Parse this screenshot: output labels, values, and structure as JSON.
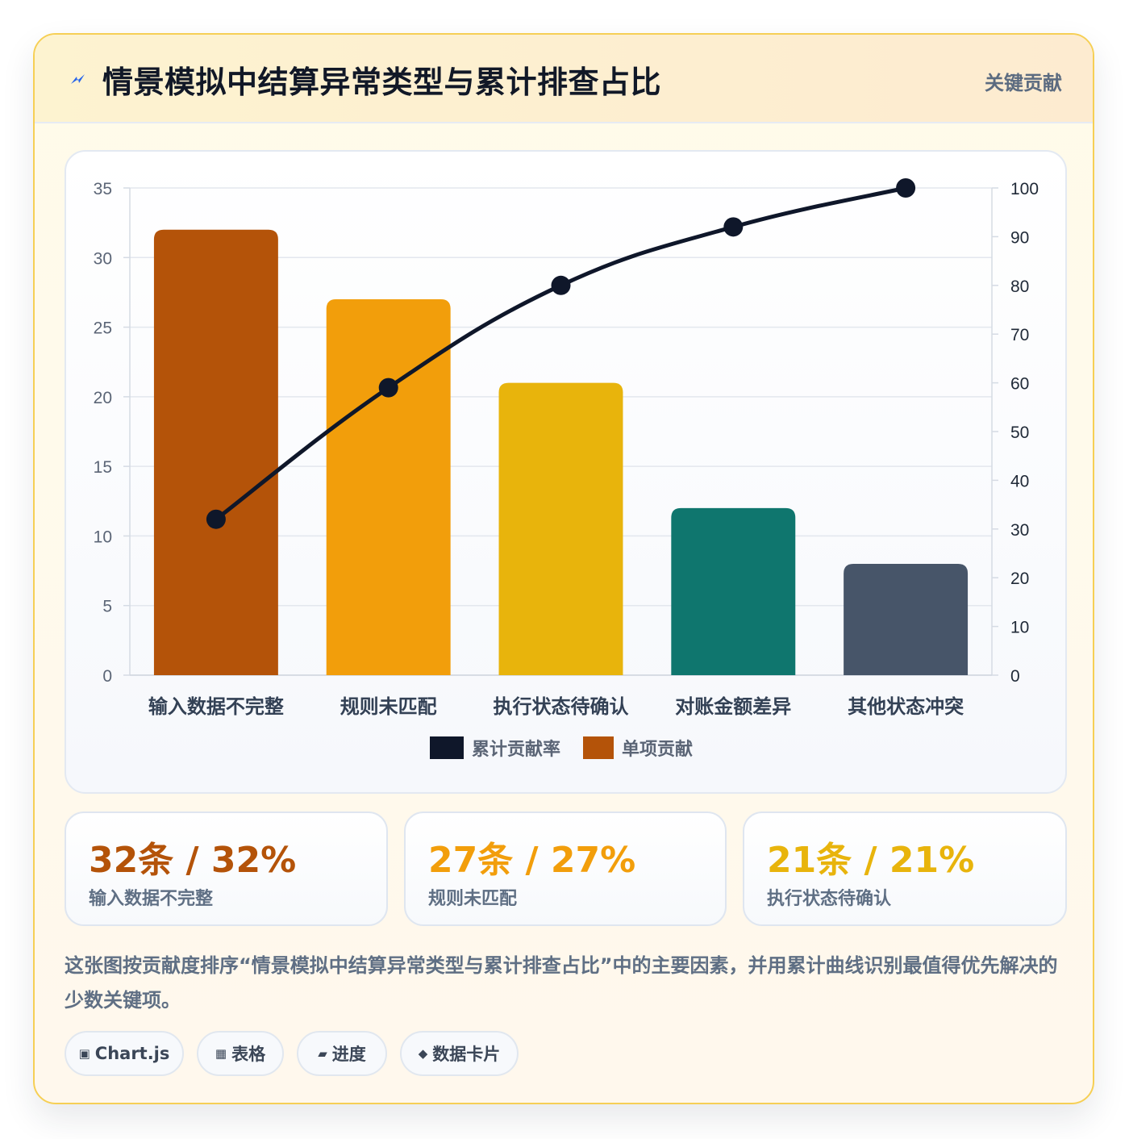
{
  "header": {
    "title": "情景模拟中结算异常类型与累计排查占比",
    "badge": "关键贡献",
    "icon": "lightning-icon"
  },
  "chart_data": {
    "type": "bar",
    "categories": [
      "输入数据不完整",
      "规则未匹配",
      "执行状态待确认",
      "对账金额差异",
      "其他状态冲突"
    ],
    "series": [
      {
        "name": "单项贡献",
        "type": "bar",
        "axis": "left",
        "values": [
          32,
          27,
          21,
          12,
          8
        ],
        "colors": [
          "#b45309",
          "#f29e0b",
          "#e8b40c",
          "#0f766e",
          "#475569"
        ]
      },
      {
        "name": "累计贡献率",
        "type": "line",
        "axis": "right",
        "values": [
          32,
          59,
          80,
          92,
          100
        ],
        "color": "#0f172a"
      }
    ],
    "y_left": {
      "min": 0,
      "max": 35,
      "ticks": [
        "0",
        "5",
        "10",
        "15",
        "20",
        "25",
        "30",
        "35"
      ]
    },
    "y_right": {
      "min": 0,
      "max": 100,
      "ticks": [
        "0",
        "10",
        "20",
        "30",
        "40",
        "50",
        "60",
        "70",
        "80",
        "90",
        "100"
      ]
    },
    "grid": true,
    "legend": [
      {
        "label": "累计贡献率",
        "color": "#0f172a"
      },
      {
        "label": "单项贡献",
        "color": "#b45309"
      }
    ],
    "legend_position": "bottom"
  },
  "stats": [
    {
      "value": "32条 / 32%",
      "label": "输入数据不完整",
      "color": "#b45309"
    },
    {
      "value": "27条 / 27%",
      "label": "规则未匹配",
      "color": "#f29e0b"
    },
    {
      "value": "21条 / 21%",
      "label": "执行状态待确认",
      "color": "#e8b40c"
    }
  ],
  "description": "这张图按贡献度排序“情景模拟中结算异常类型与累计排查占比”中的主要因素，并用累计曲线识别最值得优先解决的少数关键项。",
  "tags": [
    {
      "icon": "▣",
      "icon_name": "chart-icon",
      "label": "Chart.js"
    },
    {
      "icon": "▦",
      "icon_name": "table-icon",
      "label": "表格"
    },
    {
      "icon": "▰",
      "icon_name": "progress-icon",
      "label": "进度"
    },
    {
      "icon": "◆",
      "icon_name": "card-icon",
      "label": "数据卡片"
    }
  ]
}
